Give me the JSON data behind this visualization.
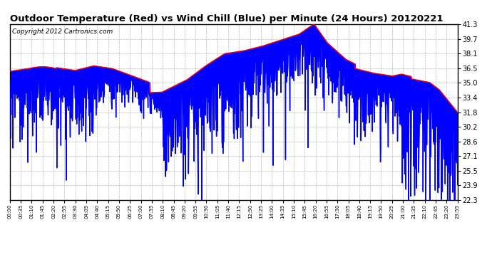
{
  "title": "Outdoor Temperature (Red) vs Wind Chill (Blue) per Minute (24 Hours) 20120221",
  "copyright": "Copyright 2012 Cartronics.com",
  "yticks": [
    22.3,
    23.9,
    25.5,
    27.1,
    28.6,
    30.2,
    31.8,
    33.4,
    35.0,
    36.5,
    38.1,
    39.7,
    41.3
  ],
  "ymin": 22.3,
  "ymax": 41.3,
  "temp_color": "#ff0000",
  "wind_color": "#0000ff",
  "bg_color": "#ffffff",
  "plot_bg": "#ffffff",
  "grid_color": "#bbbbbb",
  "title_fontsize": 9.5,
  "copyright_fontsize": 6.5,
  "n_minutes": 1440,
  "xtick_labels": [
    "00:00",
    "00:35",
    "01:10",
    "01:45",
    "02:20",
    "02:55",
    "03:30",
    "04:05",
    "04:40",
    "05:15",
    "05:50",
    "06:25",
    "07:00",
    "07:35",
    "08:10",
    "08:45",
    "09:20",
    "09:55",
    "10:30",
    "11:05",
    "11:40",
    "12:15",
    "12:50",
    "13:25",
    "14:00",
    "14:35",
    "15:10",
    "15:45",
    "16:20",
    "16:55",
    "17:30",
    "18:05",
    "18:40",
    "19:15",
    "19:50",
    "20:25",
    "21:00",
    "21:35",
    "22:10",
    "22:45",
    "23:20",
    "23:55"
  ]
}
